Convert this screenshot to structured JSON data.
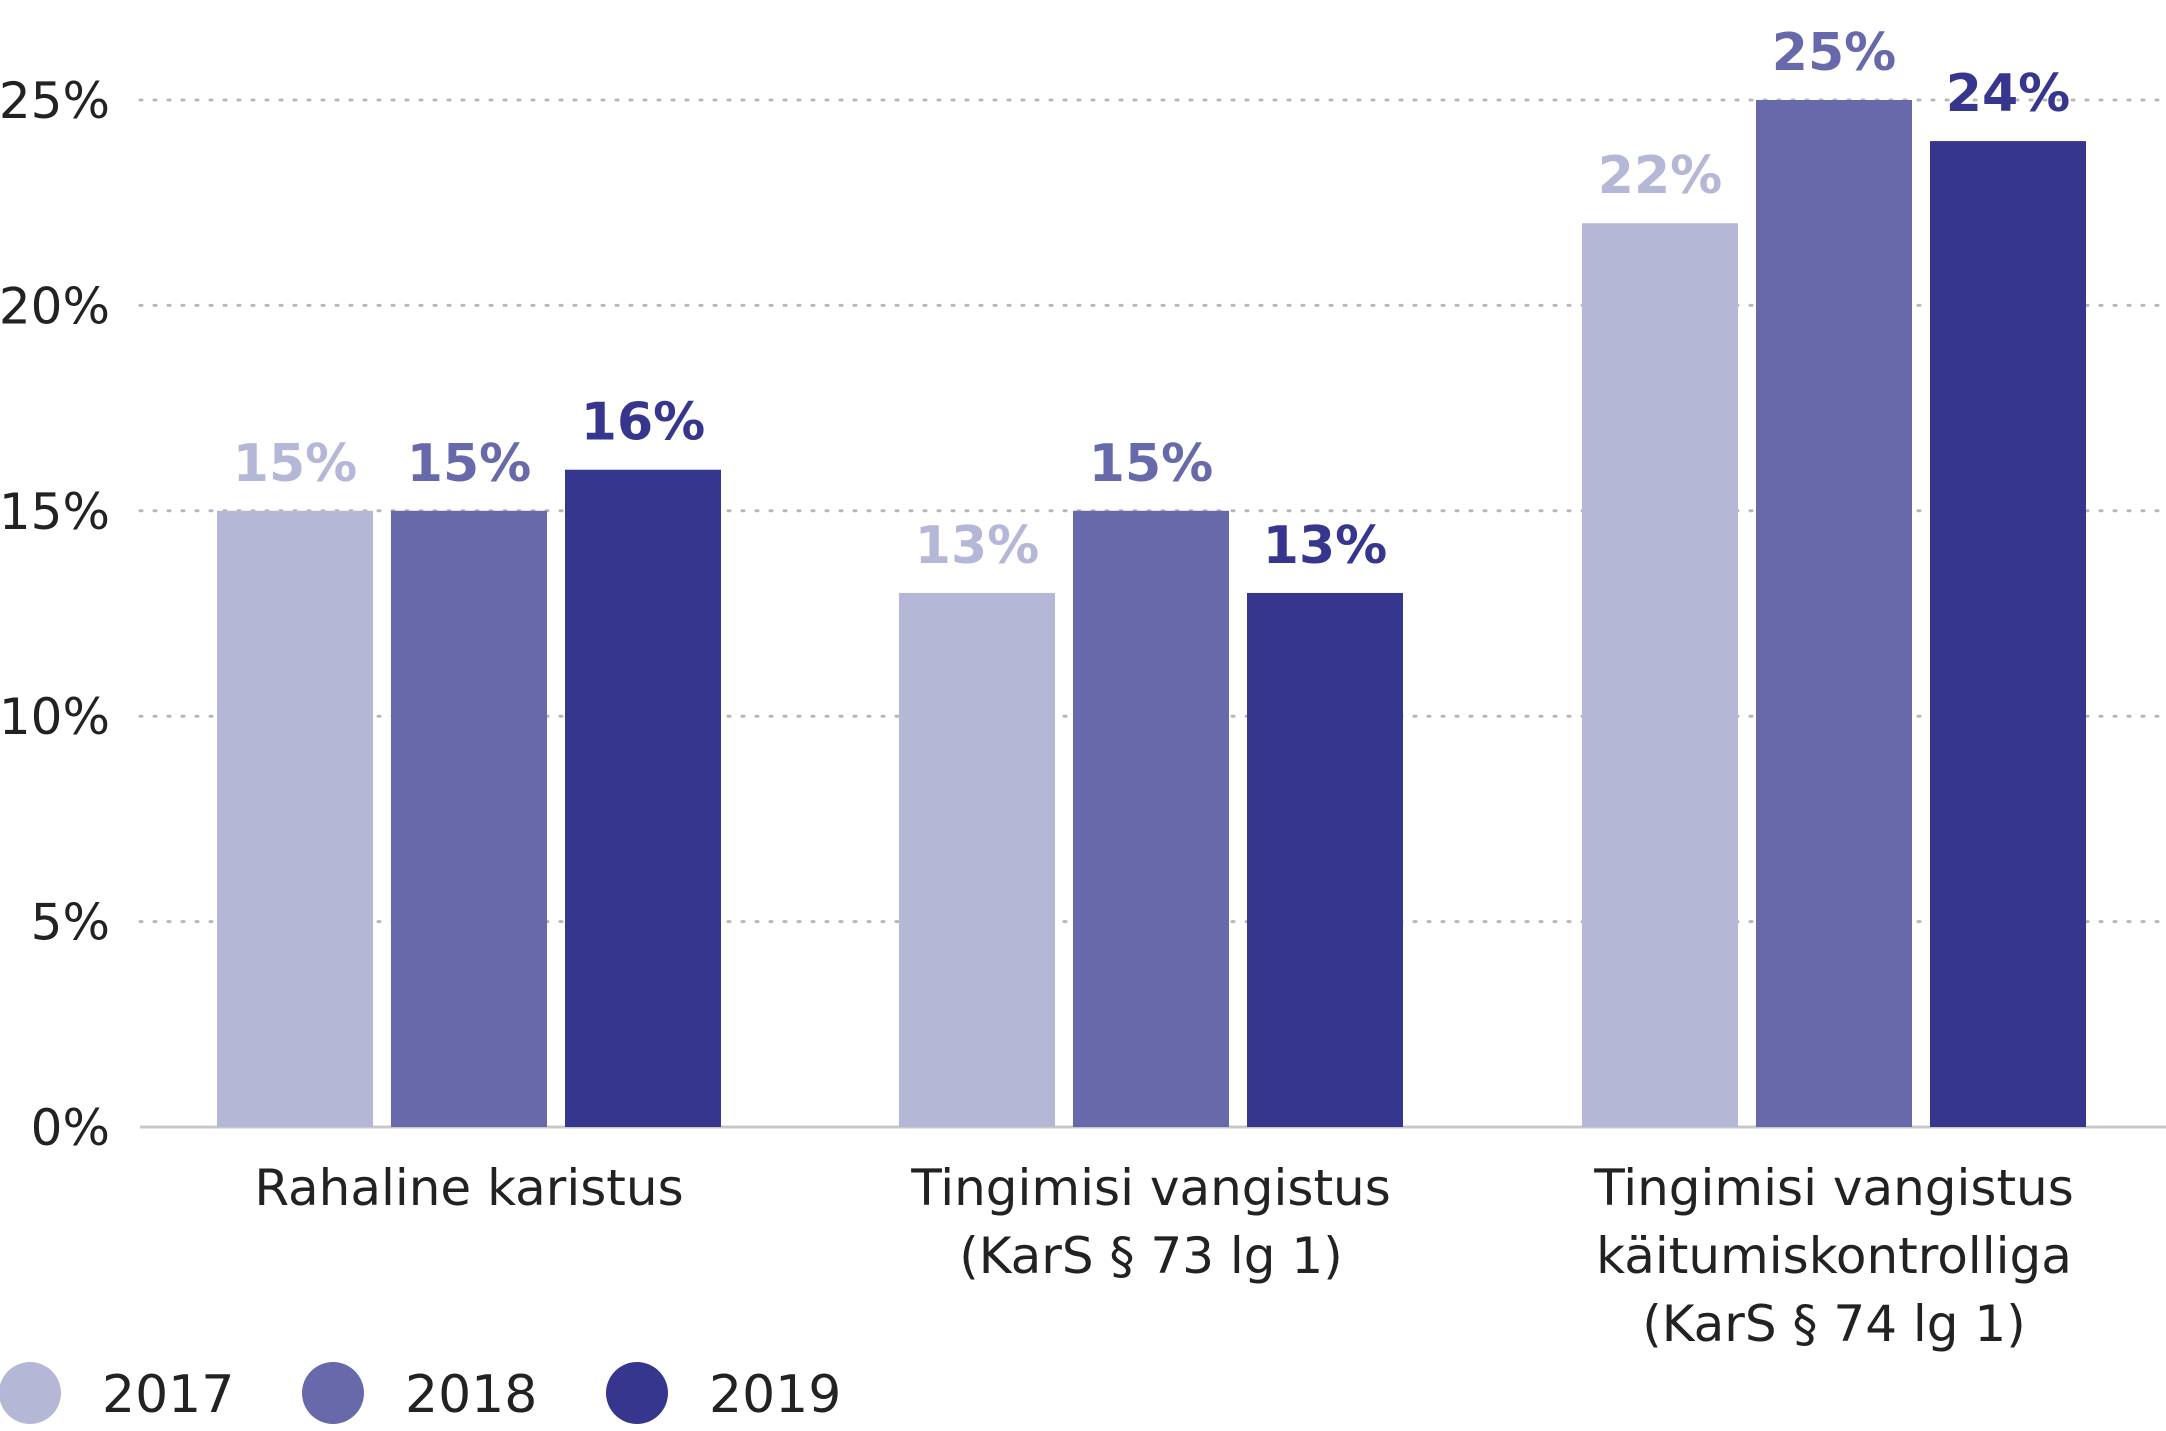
{
  "chart_data": {
    "type": "bar",
    "categories": [
      [
        "Rahaline karistus"
      ],
      [
        "Tingimisi vangistus",
        "(KarS § 73 lg 1)"
      ],
      [
        "Tingimisi vangistus",
        "käitumiskontrolliga",
        "(KarS § 74 lg 1)"
      ]
    ],
    "series": [
      {
        "name": "2017",
        "values": [
          15,
          13,
          22
        ],
        "labels": [
          "15%",
          "13%",
          "22%"
        ],
        "color": "#b5b7d6"
      },
      {
        "name": "2018",
        "values": [
          15,
          15,
          25
        ],
        "labels": [
          "15%",
          "15%",
          "25%"
        ],
        "color": "#6869aa"
      },
      {
        "name": "2019",
        "values": [
          16,
          13,
          24
        ],
        "labels": [
          "16%",
          "13%",
          "24%"
        ],
        "color": "#36368e"
      }
    ],
    "y_ticks": [
      {
        "value": 0,
        "label": "0%"
      },
      {
        "value": 5,
        "label": "5%"
      },
      {
        "value": 10,
        "label": "10%"
      },
      {
        "value": 15,
        "label": "15%"
      },
      {
        "value": 20,
        "label": "20%"
      },
      {
        "value": 25,
        "label": "25%"
      }
    ],
    "ylim": [
      0,
      25
    ],
    "grid": "dotted horizontal",
    "legend_position": "bottom-left",
    "title": "",
    "xlabel": "",
    "ylabel": ""
  }
}
